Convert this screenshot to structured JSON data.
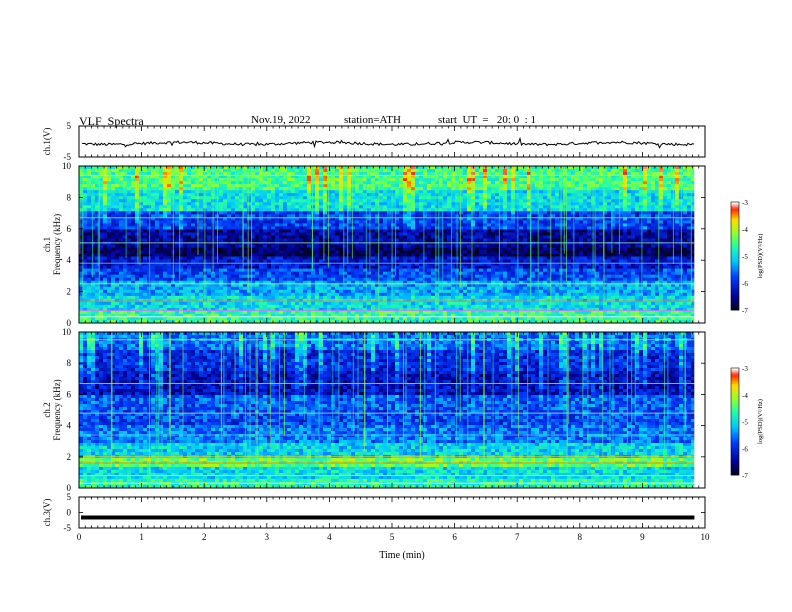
{
  "header": {
    "title": "VLF  Spectra",
    "date": "Nov.19, 2022",
    "station": "station=ATH",
    "start": "start  UT  =   20: 0  : 1"
  },
  "chart_data": [
    {
      "type": "line",
      "panel": "ch1-waveform",
      "ylabel": "ch.1(V)",
      "ylim": [
        -5,
        5
      ],
      "yticks": [
        "5",
        "-5"
      ],
      "xlim": [
        0,
        10
      ],
      "level_description_value": -0.6,
      "color": "#000000"
    },
    {
      "type": "heatmap",
      "panel": "ch1-spectrogram",
      "ylabel_top": "ch.1",
      "ylabel": "Frequency  (kHz)",
      "ylim": [
        0,
        10
      ],
      "yticks": [
        "0",
        "2",
        "4",
        "6",
        "8",
        "10"
      ],
      "xlim": [
        0,
        10
      ],
      "data_end_min": 9.83,
      "colorbar": {
        "label": "log(PSD)(V²/Hz)",
        "ticks": [
          "-3",
          "-4",
          "-5",
          "-6",
          "-7"
        ],
        "range": [
          -7,
          -3
        ]
      }
    },
    {
      "type": "heatmap",
      "panel": "ch2-spectrogram",
      "ylabel_top": "ch.2",
      "ylabel": "Frequency  (kHz)",
      "ylim": [
        0,
        10
      ],
      "yticks": [
        "0",
        "2",
        "4",
        "6",
        "8",
        "10"
      ],
      "xlim": [
        0,
        10
      ],
      "data_end_min": 9.83,
      "colorbar": {
        "label": "log(PSD)(V²/Hz)",
        "ticks": [
          "-3",
          "-4",
          "-5",
          "-6",
          "-7"
        ],
        "range": [
          -7,
          -3
        ]
      }
    },
    {
      "type": "line",
      "panel": "ch3-waveform",
      "ylabel": "ch.3(V)",
      "ylim": [
        -5,
        5
      ],
      "yticks": [
        "5",
        "0",
        "-5"
      ],
      "xlim": [
        0,
        10
      ],
      "xlabel": "Time  (min)",
      "xticks": [
        "0",
        "1",
        "2",
        "3",
        "4",
        "5",
        "6",
        "7",
        "8",
        "9",
        "10"
      ],
      "level_value": -1.6,
      "color": "#000000"
    }
  ]
}
